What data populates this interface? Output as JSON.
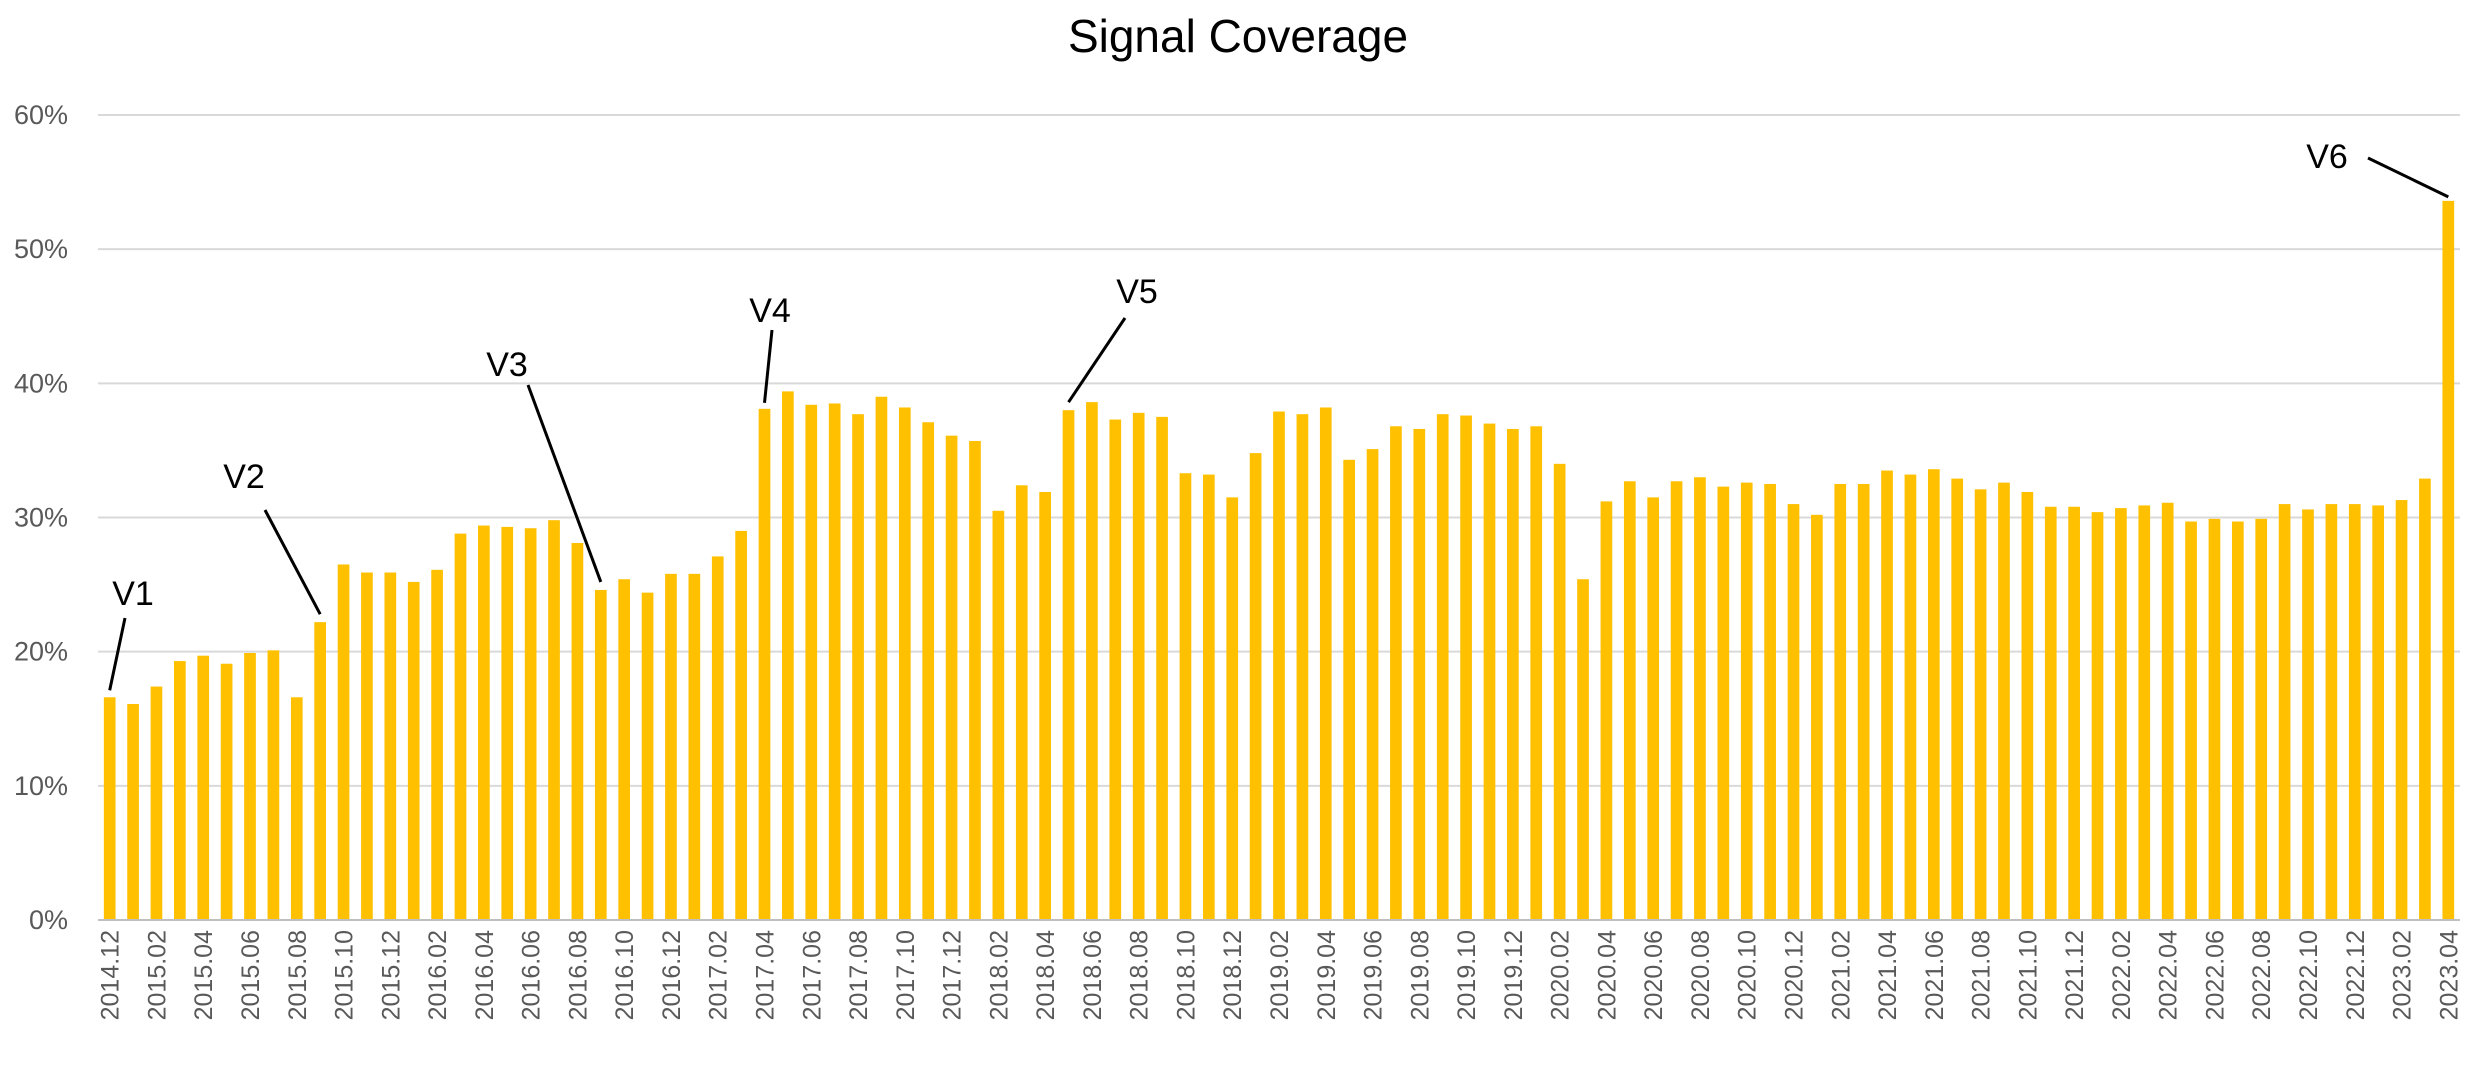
{
  "colors": {
    "bar": "#FFC000",
    "grid": "#D9D9D9",
    "axis_text": "#595959",
    "annotation": "#000000"
  },
  "chart_data": {
    "type": "bar",
    "title": "Signal Coverage",
    "xlabel": "",
    "ylabel": "",
    "ylim": [
      0,
      0.6
    ],
    "yticks": [
      "0%",
      "10%",
      "20%",
      "30%",
      "40%",
      "50%",
      "60%"
    ],
    "grid": true,
    "legend": "none",
    "categories": [
      "2014.12",
      "2015.01",
      "2015.02",
      "2015.03",
      "2015.04",
      "2015.05",
      "2015.06",
      "2015.07",
      "2015.08",
      "2015.09",
      "2015.10",
      "2015.11",
      "2015.12",
      "2016.01",
      "2016.02",
      "2016.03",
      "2016.04",
      "2016.05",
      "2016.06",
      "2016.07",
      "2016.08",
      "2016.09",
      "2016.10",
      "2016.11",
      "2016.12",
      "2017.01",
      "2017.02",
      "2017.03",
      "2017.04",
      "2017.05",
      "2017.06",
      "2017.07",
      "2017.08",
      "2017.09",
      "2017.10",
      "2017.11",
      "2017.12",
      "2018.01",
      "2018.02",
      "2018.03",
      "2018.04",
      "2018.05",
      "2018.06",
      "2018.07",
      "2018.08",
      "2018.09",
      "2018.10",
      "2018.11",
      "2018.12",
      "2019.01",
      "2019.02",
      "2019.03",
      "2019.04",
      "2019.05",
      "2019.06",
      "2019.07",
      "2019.08",
      "2019.09",
      "2019.10",
      "2019.11",
      "2019.12",
      "2020.01",
      "2020.02",
      "2020.03",
      "2020.04",
      "2020.05",
      "2020.06",
      "2020.07",
      "2020.08",
      "2020.09",
      "2020.10",
      "2020.11",
      "2020.12",
      "2021.01",
      "2021.02",
      "2021.03",
      "2021.04",
      "2021.05",
      "2021.06",
      "2021.07",
      "2021.08",
      "2021.09",
      "2021.10",
      "2021.11",
      "2021.12",
      "2022.01",
      "2022.02",
      "2022.03",
      "2022.04",
      "2022.05",
      "2022.06",
      "2022.07",
      "2022.08",
      "2022.09",
      "2022.10",
      "2022.11",
      "2022.12",
      "2023.01",
      "2023.02",
      "2023.03",
      "2023.04"
    ],
    "tick_labels": [
      "2014.12",
      "2015.02",
      "2015.04",
      "2015.06",
      "2015.08",
      "2015.10",
      "2015.12",
      "2016.02",
      "2016.04",
      "2016.06",
      "2016.08",
      "2016.10",
      "2016.12",
      "2017.02",
      "2017.04",
      "2017.06",
      "2017.08",
      "2017.10",
      "2017.12",
      "2018.02",
      "2018.04",
      "2018.06",
      "2018.08",
      "2018.10",
      "2018.12",
      "2019.02",
      "2019.04",
      "2019.06",
      "2019.08",
      "2019.10",
      "2019.12",
      "2020.02",
      "2020.04",
      "2020.06",
      "2020.08",
      "2020.10",
      "2020.12",
      "2021.02",
      "2021.04",
      "2021.06",
      "2021.08",
      "2021.10",
      "2021.12",
      "2022.02",
      "2022.04",
      "2022.06",
      "2022.08",
      "2022.10",
      "2022.12",
      "2023.02",
      "2023.04"
    ],
    "values": [
      0.166,
      0.161,
      0.174,
      0.193,
      0.197,
      0.191,
      0.199,
      0.201,
      0.166,
      0.222,
      0.265,
      0.259,
      0.259,
      0.252,
      0.261,
      0.288,
      0.294,
      0.293,
      0.292,
      0.298,
      0.281,
      0.246,
      0.254,
      0.244,
      0.258,
      0.258,
      0.271,
      0.29,
      0.381,
      0.394,
      0.384,
      0.385,
      0.377,
      0.39,
      0.382,
      0.371,
      0.361,
      0.357,
      0.305,
      0.324,
      0.319,
      0.38,
      0.386,
      0.373,
      0.378,
      0.375,
      0.333,
      0.332,
      0.315,
      0.348,
      0.379,
      0.377,
      0.382,
      0.343,
      0.351,
      0.368,
      0.366,
      0.377,
      0.376,
      0.37,
      0.366,
      0.368,
      0.34,
      0.254,
      0.312,
      0.327,
      0.315,
      0.327,
      0.33,
      0.323,
      0.326,
      0.325,
      0.31,
      0.302,
      0.325,
      0.325,
      0.335,
      0.332,
      0.336,
      0.329,
      0.321,
      0.326,
      0.319,
      0.308,
      0.308,
      0.304,
      0.307,
      0.309,
      0.311,
      0.297,
      0.299,
      0.297,
      0.299,
      0.31,
      0.306,
      0.31,
      0.31,
      0.309,
      0.313,
      0.329,
      0.536
    ],
    "annotations": [
      {
        "label": "V1",
        "category": "2014.12"
      },
      {
        "label": "V2",
        "category": "2015.09"
      },
      {
        "label": "V3",
        "category": "2016.09"
      },
      {
        "label": "V4",
        "category": "2017.04"
      },
      {
        "label": "V5",
        "category": "2018.05"
      },
      {
        "label": "V6",
        "category": "2023.04"
      }
    ]
  }
}
